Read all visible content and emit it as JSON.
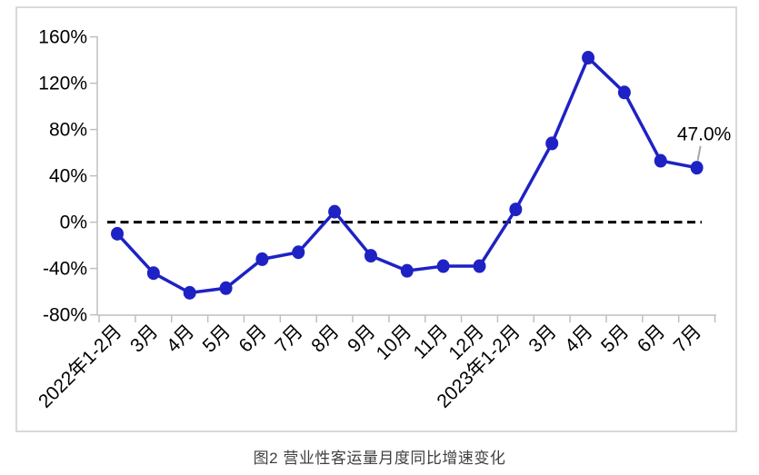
{
  "chart_data": {
    "type": "line",
    "caption": "图2 营业性客运量月度同比增速变化",
    "categories": [
      "2022年1-2月",
      "3月",
      "4月",
      "5月",
      "6月",
      "7月",
      "8月",
      "9月",
      "10月",
      "11月",
      "12月",
      "2023年1-2月",
      "3月",
      "4月",
      "5月",
      "6月",
      "7月"
    ],
    "series": [
      {
        "name": "营业性客运量月度同比增速",
        "values": [
          -10,
          -44,
          -61,
          -57,
          -32,
          -26,
          9,
          -29,
          -42,
          -38,
          -38,
          11,
          68,
          142,
          112,
          53,
          47.0
        ]
      }
    ],
    "unit": "%",
    "y_axis": {
      "ticks": [
        160,
        120,
        80,
        40,
        0,
        -40,
        -80
      ],
      "min": -80,
      "max": 160,
      "tick_suffix": "%"
    },
    "x_axis": {
      "label_rotation_deg": -45
    },
    "zero_line": {
      "style": "dashed",
      "value": 0
    },
    "annotation": {
      "text": "47.0%",
      "point_index": 16
    },
    "grid": false,
    "legend": "none",
    "colors": {
      "line": "#1e22c4",
      "marker": "#1e22c4",
      "axis": "#bfbfbf",
      "frame": "#d9d9d9",
      "labels": "#000000",
      "zero_line": "#000000",
      "caption": "#404040",
      "leader": "#a6a6a6",
      "background": "#ffffff"
    }
  }
}
